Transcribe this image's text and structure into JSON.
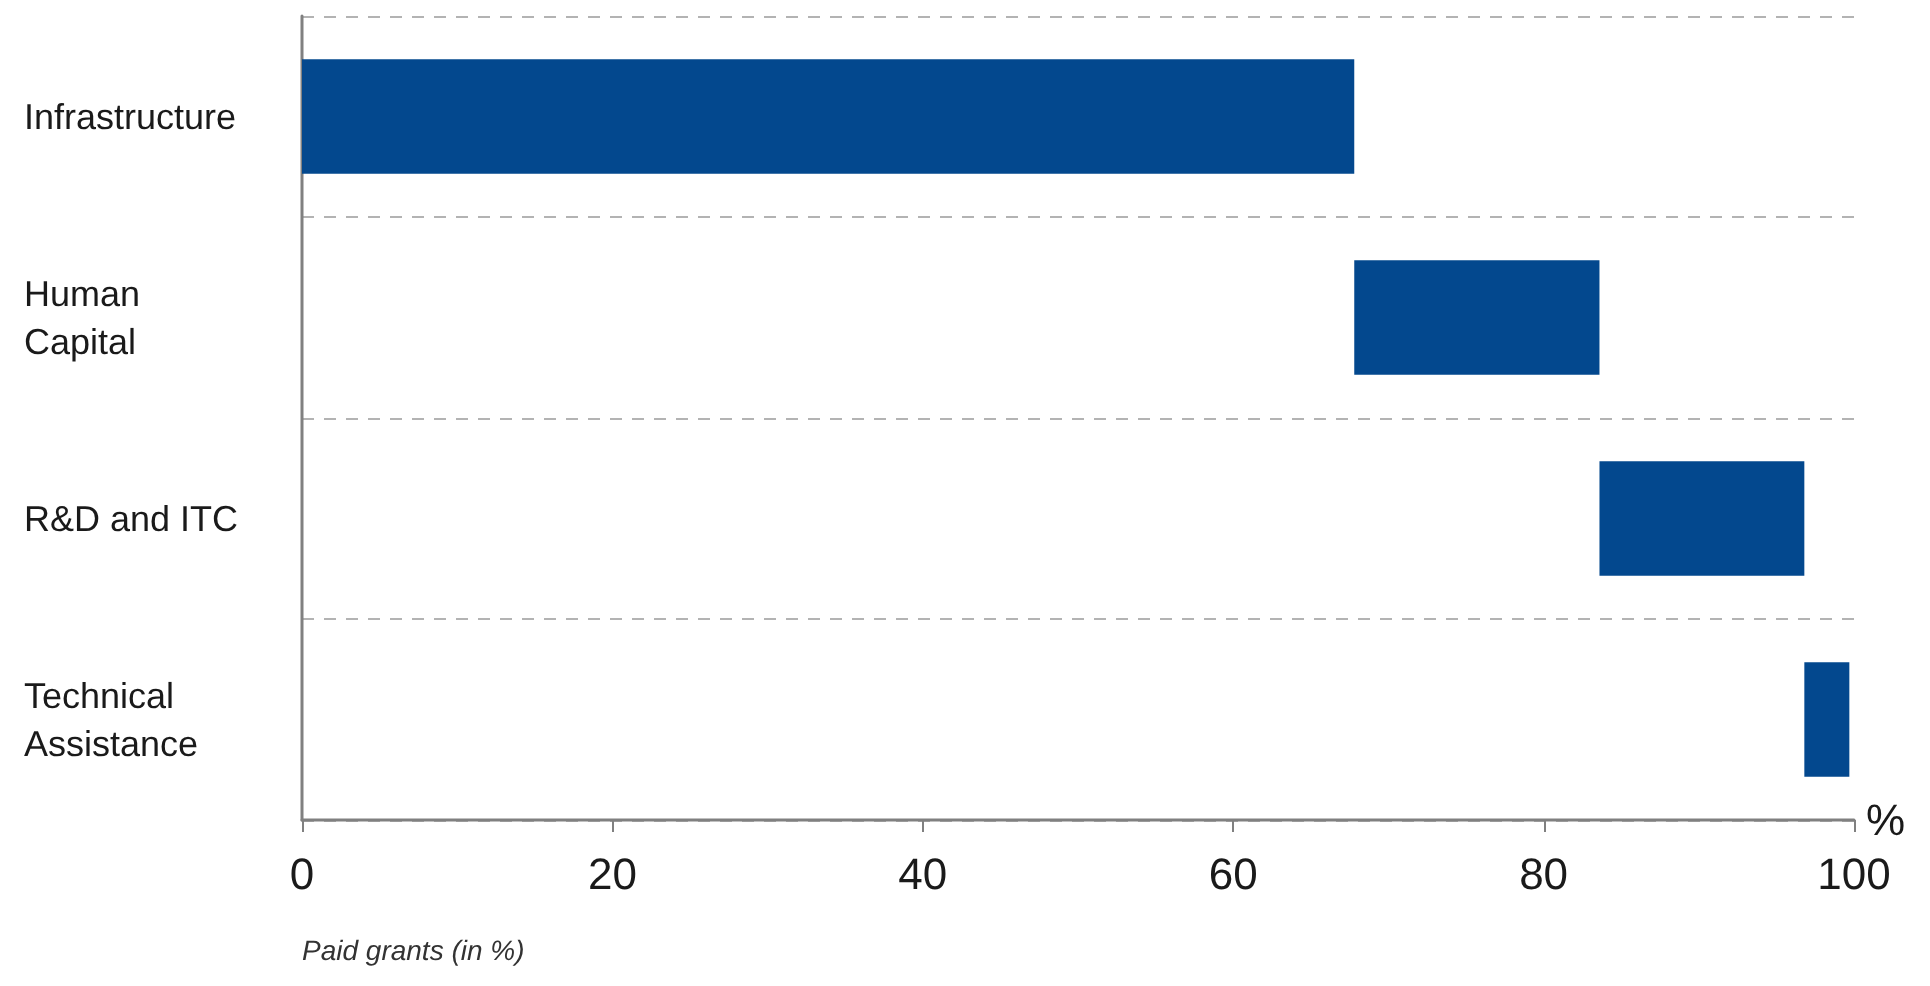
{
  "chart_data": {
    "type": "bar",
    "orientation": "horizontal",
    "categories": [
      "Infrastructure",
      "Human Capital",
      "R&D and ITC",
      "Technical Assistance"
    ],
    "base": [
      0,
      67.8,
      83.6,
      96.8
    ],
    "values": [
      67.8,
      15.8,
      13.2,
      2.9
    ],
    "color": "#03488e",
    "xlim": [
      0,
      100
    ],
    "xticks": [
      0,
      20,
      40,
      60,
      80,
      100
    ],
    "xlabel": "%",
    "grid": "y",
    "annotations": [
      "Paid grants (in %)"
    ]
  }
}
